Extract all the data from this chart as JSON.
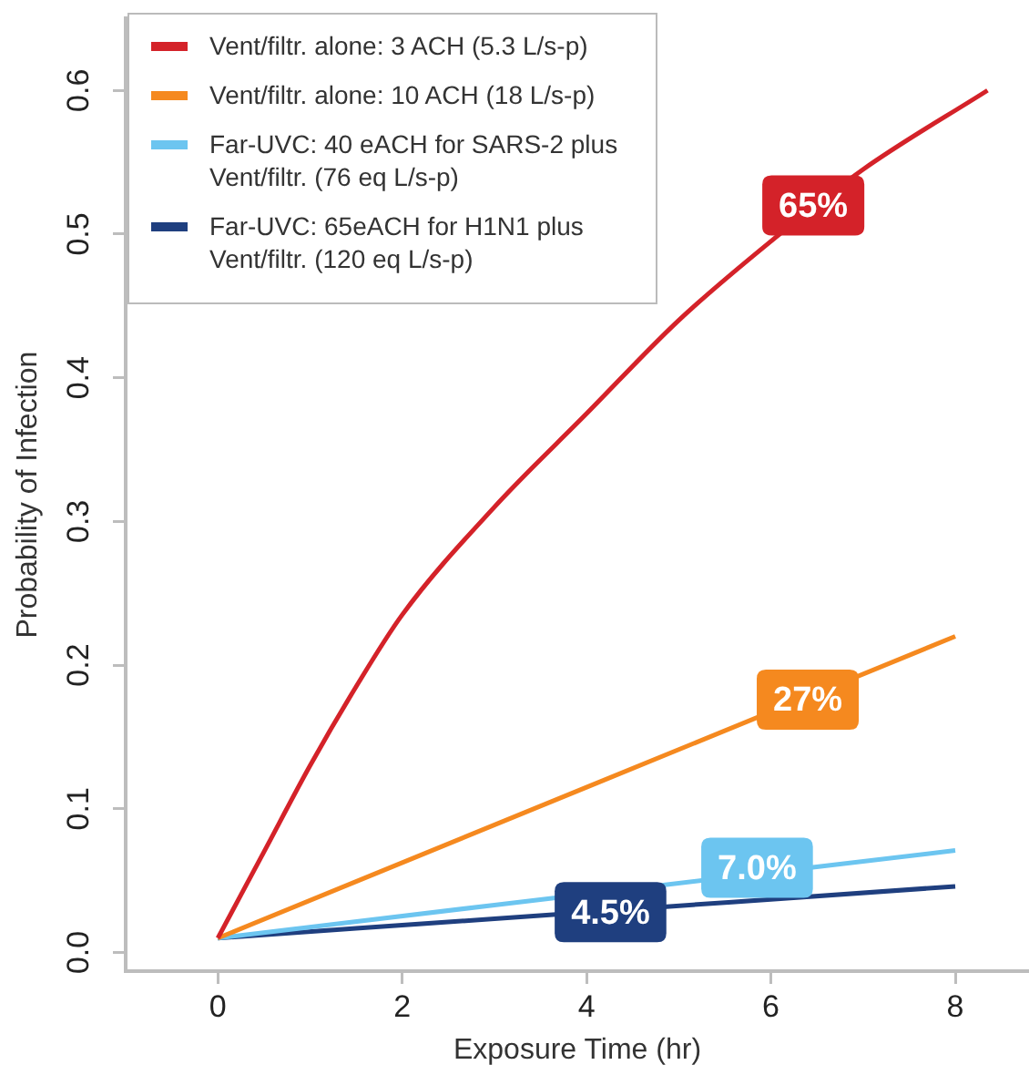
{
  "chart_data": {
    "type": "line",
    "xlabel": "Exposure Time (hr)",
    "ylabel": "Probability of Infection",
    "xlim": [
      -1,
      8.8
    ],
    "xticks": [
      0,
      2,
      4,
      6,
      8
    ],
    "ylim": [
      -0.013,
      0.65
    ],
    "yticks": [
      {
        "value": 0,
        "label": "0.0"
      },
      {
        "value": 0.1,
        "label": "0.1"
      },
      {
        "value": 0.2,
        "label": "0.2"
      },
      {
        "value": 0.3,
        "label": "0.3"
      },
      {
        "value": 0.4,
        "label": "0.4"
      },
      {
        "value": 0.5,
        "label": "0.5"
      },
      {
        "value": 0.6,
        "label": "0.6"
      }
    ],
    "grid": false,
    "legend": "top left",
    "marker": "none",
    "line_style": "solid",
    "series": [
      {
        "name": "Vent/filtr. alone: 3 ACH (5.3 L/s-p)",
        "color": "#d42229",
        "x": [
          0,
          0.5,
          1,
          1.5,
          2,
          3,
          4,
          5,
          6,
          7,
          8.35
        ],
        "values": [
          0.01,
          0.07,
          0.13,
          0.185,
          0.235,
          0.31,
          0.375,
          0.44,
          0.495,
          0.545,
          0.6
        ]
      },
      {
        "name": "Vent/filtr. alone: 10 ACH (18 L/s-p)",
        "color": "#f5891f",
        "x": [
          0,
          4,
          8
        ],
        "values": [
          0.01,
          0.115,
          0.22
        ]
      },
      {
        "name": "Far-UVC: 40 eACH for SARS-2 plus Vent/filtr. (76 eq L/s-p)",
        "color": "#6cc5f0",
        "x": [
          0,
          3,
          8
        ],
        "values": [
          0.01,
          0.033,
          0.071
        ]
      },
      {
        "name": "Far-UVC: 65eACH for H1N1 plus Vent/filtr. (120 eq L/s-p)",
        "color": "#1f3f7f",
        "x": [
          0,
          3,
          8
        ],
        "values": [
          0.01,
          0.0235,
          0.046
        ]
      }
    ],
    "annotations": [
      {
        "text": "65%",
        "x": 6.46,
        "y": 0.52
      },
      {
        "text": "27%",
        "x": 6.4,
        "y": 0.176
      },
      {
        "text": "7.0%",
        "x": 5.85,
        "y": 0.059
      },
      {
        "text": "4.5%",
        "x": 4.26,
        "y": 0.028
      }
    ]
  }
}
